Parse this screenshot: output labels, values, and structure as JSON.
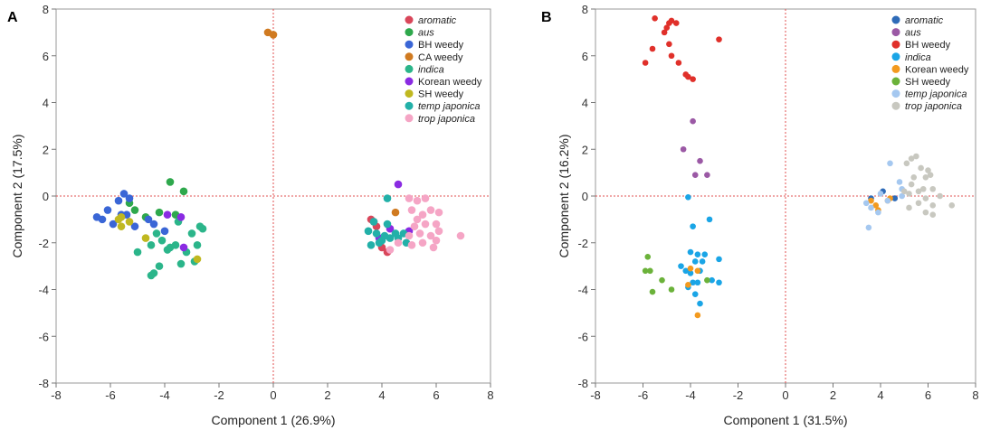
{
  "chart_data": [
    {
      "type": "scatter",
      "panel_label": "A",
      "xlabel": "Component 1 (26.9%)",
      "ylabel": "Component 2 (17.5%)",
      "xlim": [
        -8,
        8
      ],
      "ylim": [
        -8,
        8
      ],
      "xticks": [
        "-8",
        "-6",
        "-4",
        "-2",
        "0",
        "2",
        "4",
        "6",
        "8"
      ],
      "yticks": [
        "-8",
        "-6",
        "-4",
        "-2",
        "0",
        "2",
        "4",
        "6",
        "8"
      ],
      "reference_lines": {
        "x": 0,
        "y": 0,
        "color": "#e05050"
      },
      "legend_position": "top-right",
      "series": [
        {
          "name": "aromatic",
          "italic": true,
          "color": "#d9465a",
          "points": [
            [
              3.6,
              -1.0
            ],
            [
              3.7,
              -1.1
            ],
            [
              4.0,
              -2.2
            ],
            [
              4.2,
              -2.4
            ],
            [
              3.8,
              -1.3
            ]
          ]
        },
        {
          "name": "aus",
          "italic": true,
          "color": "#2ea84c",
          "points": [
            [
              -3.8,
              0.6
            ],
            [
              -3.3,
              0.2
            ],
            [
              -5.3,
              -0.3
            ],
            [
              -4.2,
              -0.7
            ],
            [
              -4.7,
              -0.9
            ],
            [
              -3.6,
              -0.8
            ],
            [
              -5.1,
              -0.6
            ]
          ]
        },
        {
          "name": "BH weedy",
          "italic": false,
          "color": "#3a66d6",
          "points": [
            [
              -5.5,
              0.1
            ],
            [
              -5.7,
              -0.2
            ],
            [
              -6.1,
              -0.6
            ],
            [
              -6.5,
              -0.9
            ],
            [
              -5.4,
              -0.8
            ],
            [
              -5.9,
              -1.2
            ],
            [
              -4.6,
              -1.0
            ],
            [
              -5.1,
              -1.3
            ],
            [
              -4.0,
              -1.5
            ],
            [
              -4.4,
              -1.2
            ],
            [
              -5.3,
              -0.1
            ],
            [
              -6.3,
              -1.0
            ],
            [
              -5.6,
              -0.8
            ]
          ]
        },
        {
          "name": "CA weedy",
          "italic": false,
          "color": "#d07a20",
          "points": [
            [
              -0.2,
              7.0
            ],
            [
              0.0,
              6.9
            ],
            [
              4.5,
              -0.7
            ]
          ]
        },
        {
          "name": "indica",
          "italic": true,
          "color": "#2bb58a",
          "points": [
            [
              -5.0,
              -2.4
            ],
            [
              -4.5,
              -2.1
            ],
            [
              -4.1,
              -1.9
            ],
            [
              -3.8,
              -2.2
            ],
            [
              -3.6,
              -2.1
            ],
            [
              -3.2,
              -2.4
            ],
            [
              -2.8,
              -2.1
            ],
            [
              -2.6,
              -1.4
            ],
            [
              -3.0,
              -1.6
            ],
            [
              -2.9,
              -2.8
            ],
            [
              -3.5,
              -1.1
            ],
            [
              -4.2,
              -3.0
            ],
            [
              -4.4,
              -3.3
            ],
            [
              -4.5,
              -3.4
            ],
            [
              -4.3,
              -1.6
            ],
            [
              -3.9,
              -2.3
            ],
            [
              -2.7,
              -1.3
            ],
            [
              -3.4,
              -2.9
            ]
          ]
        },
        {
          "name": "Korean weedy",
          "italic": false,
          "color": "#8a2be2",
          "points": [
            [
              -3.4,
              -0.9
            ],
            [
              -3.3,
              -2.2
            ],
            [
              -3.9,
              -0.8
            ],
            [
              4.6,
              0.5
            ],
            [
              3.9,
              -1.8
            ],
            [
              4.3,
              -1.4
            ],
            [
              5.0,
              -1.5
            ]
          ]
        },
        {
          "name": "SH weedy",
          "italic": false,
          "color": "#c0b820",
          "points": [
            [
              -5.3,
              -1.1
            ],
            [
              -5.6,
              -1.3
            ],
            [
              -5.7,
              -1.0
            ],
            [
              -4.7,
              -1.8
            ],
            [
              -2.8,
              -2.7
            ],
            [
              -5.6,
              -0.9
            ]
          ]
        },
        {
          "name": "temp japonica",
          "italic": true,
          "color": "#22b0a8",
          "points": [
            [
              3.5,
              -1.5
            ],
            [
              3.8,
              -1.6
            ],
            [
              4.1,
              -1.7
            ],
            [
              4.3,
              -1.8
            ],
            [
              4.6,
              -1.8
            ],
            [
              4.9,
              -2.0
            ],
            [
              3.6,
              -2.1
            ],
            [
              4.0,
              -1.9
            ],
            [
              4.5,
              -1.6
            ],
            [
              4.2,
              -1.2
            ],
            [
              3.7,
              -1.1
            ],
            [
              4.8,
              -1.6
            ],
            [
              3.9,
              -2.0
            ],
            [
              4.2,
              -0.1
            ]
          ]
        },
        {
          "name": "trop japonica",
          "italic": true,
          "color": "#f5a5c5",
          "points": [
            [
              5.0,
              -0.1
            ],
            [
              5.3,
              -0.2
            ],
            [
              5.1,
              -0.6
            ],
            [
              5.5,
              -0.8
            ],
            [
              5.8,
              -0.6
            ],
            [
              6.1,
              -0.7
            ],
            [
              5.3,
              -1.0
            ],
            [
              5.6,
              -1.2
            ],
            [
              6.0,
              -1.2
            ],
            [
              6.1,
              -1.5
            ],
            [
              5.4,
              -1.6
            ],
            [
              5.8,
              -1.7
            ],
            [
              6.0,
              -1.9
            ],
            [
              5.5,
              -2.0
            ],
            [
              5.1,
              -2.1
            ],
            [
              5.0,
              -1.7
            ],
            [
              4.6,
              -2.0
            ],
            [
              4.3,
              -2.3
            ],
            [
              6.9,
              -1.7
            ],
            [
              5.2,
              -1.3
            ],
            [
              5.6,
              -0.1
            ],
            [
              5.9,
              -2.2
            ]
          ]
        }
      ]
    },
    {
      "type": "scatter",
      "panel_label": "B",
      "xlabel": "Component 1 (31.5%)",
      "ylabel": "Component 2 (16.2%)",
      "xlim": [
        -8,
        8
      ],
      "ylim": [
        -8,
        8
      ],
      "xticks": [
        "-8",
        "-6",
        "-4",
        "-2",
        "0",
        "2",
        "4",
        "6",
        "8"
      ],
      "yticks": [
        "-8",
        "-6",
        "-4",
        "-2",
        "0",
        "2",
        "4",
        "6",
        "8"
      ],
      "reference_lines": {
        "x": 0,
        "y": 0,
        "color": "#e05050"
      },
      "legend_position": "top-right",
      "series": [
        {
          "name": "aromatic",
          "italic": true,
          "color": "#2e6bb8",
          "points": [
            [
              3.6,
              -0.1
            ],
            [
              4.1,
              0.2
            ],
            [
              4.6,
              -0.1
            ]
          ]
        },
        {
          "name": "aus",
          "italic": true,
          "color": "#9b59a5",
          "points": [
            [
              -3.9,
              3.2
            ],
            [
              -4.3,
              2.0
            ],
            [
              -3.6,
              1.5
            ],
            [
              -3.8,
              0.9
            ],
            [
              -3.3,
              0.9
            ]
          ]
        },
        {
          "name": "BH weedy",
          "italic": false,
          "color": "#e0302a",
          "points": [
            [
              -5.5,
              7.6
            ],
            [
              -4.9,
              7.4
            ],
            [
              -4.8,
              7.5
            ],
            [
              -4.6,
              7.4
            ],
            [
              -5.0,
              7.2
            ],
            [
              -5.1,
              7.0
            ],
            [
              -4.9,
              6.5
            ],
            [
              -5.6,
              6.3
            ],
            [
              -4.8,
              6.0
            ],
            [
              -4.5,
              5.7
            ],
            [
              -5.9,
              5.7
            ],
            [
              -4.2,
              5.2
            ],
            [
              -4.1,
              5.1
            ],
            [
              -3.9,
              5.0
            ],
            [
              -2.8,
              6.7
            ]
          ]
        },
        {
          "name": "indica",
          "italic": true,
          "color": "#1aa5e6",
          "points": [
            [
              -4.1,
              -0.05
            ],
            [
              -3.9,
              -1.3
            ],
            [
              -3.2,
              -1.0
            ],
            [
              -4.0,
              -2.4
            ],
            [
              -3.7,
              -2.5
            ],
            [
              -3.4,
              -2.5
            ],
            [
              -3.5,
              -2.8
            ],
            [
              -2.8,
              -2.7
            ],
            [
              -3.8,
              -2.8
            ],
            [
              -4.4,
              -3.0
            ],
            [
              -4.2,
              -3.2
            ],
            [
              -4.0,
              -3.3
            ],
            [
              -3.6,
              -3.2
            ],
            [
              -3.1,
              -3.6
            ],
            [
              -2.8,
              -3.7
            ],
            [
              -3.7,
              -3.7
            ],
            [
              -3.8,
              -4.2
            ],
            [
              -4.1,
              -3.9
            ],
            [
              -3.6,
              -4.6
            ],
            [
              -3.9,
              -3.7
            ]
          ]
        },
        {
          "name": "Korean weedy",
          "italic": false,
          "color": "#f39a1f",
          "points": [
            [
              -4.0,
              -3.1
            ],
            [
              -3.7,
              -3.2
            ],
            [
              -4.1,
              -3.8
            ],
            [
              -3.7,
              -5.1
            ],
            [
              3.6,
              -0.2
            ],
            [
              3.9,
              -0.6
            ],
            [
              4.4,
              -0.1
            ],
            [
              3.8,
              -0.4
            ],
            [
              4.3,
              -0.2
            ]
          ]
        },
        {
          "name": "SH weedy",
          "italic": false,
          "color": "#6bb23a",
          "points": [
            [
              -5.8,
              -2.6
            ],
            [
              -5.9,
              -3.2
            ],
            [
              -5.7,
              -3.2
            ],
            [
              -5.2,
              -3.6
            ],
            [
              -5.6,
              -4.1
            ],
            [
              -4.8,
              -4.0
            ],
            [
              -3.3,
              -3.6
            ]
          ]
        },
        {
          "name": "temp japonica",
          "italic": true,
          "color": "#a5c8f0",
          "points": [
            [
              4.4,
              1.4
            ],
            [
              4.8,
              0.6
            ],
            [
              4.9,
              0.3
            ],
            [
              4.0,
              0.1
            ],
            [
              4.3,
              -0.2
            ],
            [
              3.6,
              -0.5
            ],
            [
              3.4,
              -0.3
            ],
            [
              3.9,
              -0.7
            ],
            [
              3.5,
              -1.35
            ],
            [
              4.9,
              0.0
            ]
          ]
        },
        {
          "name": "trop japonica",
          "italic": true,
          "color": "#c8c8c0",
          "points": [
            [
              5.3,
              1.6
            ],
            [
              5.5,
              1.7
            ],
            [
              5.1,
              1.4
            ],
            [
              5.7,
              1.2
            ],
            [
              6.0,
              1.1
            ],
            [
              6.1,
              0.9
            ],
            [
              5.4,
              0.8
            ],
            [
              5.9,
              0.8
            ],
            [
              5.3,
              0.5
            ],
            [
              5.8,
              0.3
            ],
            [
              5.6,
              0.2
            ],
            [
              6.2,
              0.3
            ],
            [
              5.2,
              0.1
            ],
            [
              6.5,
              0.0
            ],
            [
              5.9,
              -0.1
            ],
            [
              6.2,
              -0.4
            ],
            [
              7.0,
              -0.4
            ],
            [
              5.6,
              -0.3
            ],
            [
              5.2,
              -0.5
            ],
            [
              5.9,
              -0.7
            ],
            [
              6.2,
              -0.8
            ],
            [
              5.0,
              0.2
            ]
          ]
        }
      ]
    }
  ]
}
